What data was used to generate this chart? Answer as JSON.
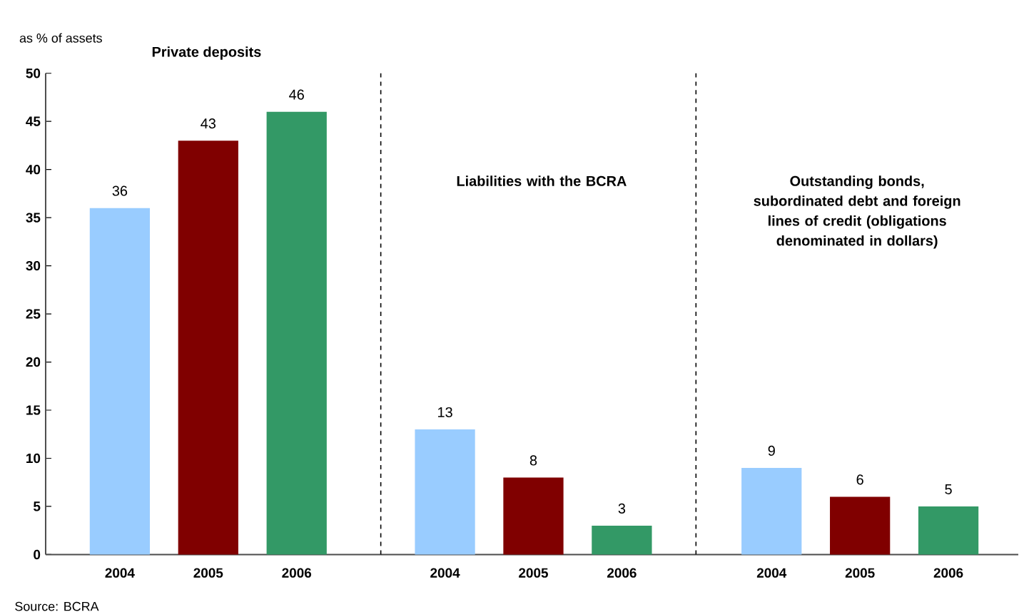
{
  "chart_data": [
    {
      "type": "bar",
      "title": "Private deposits",
      "ylabel": "as % of assets",
      "categories": [
        "2004",
        "2005",
        "2006"
      ],
      "values": [
        36,
        43,
        46
      ],
      "colors": [
        "#99ccff",
        "#800000",
        "#339966"
      ],
      "data_labels": true,
      "ylim": [
        0,
        50
      ],
      "yticks": [
        0,
        5,
        10,
        15,
        20,
        25,
        30,
        35,
        40,
        45,
        50
      ],
      "annotations": [
        "Source: BCRA"
      ]
    },
    {
      "type": "bar",
      "title": "Liabilities with the BCRA",
      "categories": [
        "2004",
        "2005",
        "2006"
      ],
      "values": [
        13,
        8,
        3
      ],
      "colors": [
        "#99ccff",
        "#800000",
        "#339966"
      ],
      "data_labels": true,
      "ylim": [
        0,
        50
      ],
      "tick_labels": "x"
    },
    {
      "type": "bar",
      "title": "Outstanding bonds, subordinated debt and foreign lines of credit (obligations denominated in dollars)",
      "categories": [
        "2004",
        "2005",
        "2006"
      ],
      "values": [
        9,
        6,
        5
      ],
      "colors": [
        "#99ccff",
        "#800000",
        "#339966"
      ],
      "data_labels": true,
      "ylim": [
        0,
        50
      ],
      "tick_labels": "x"
    }
  ]
}
